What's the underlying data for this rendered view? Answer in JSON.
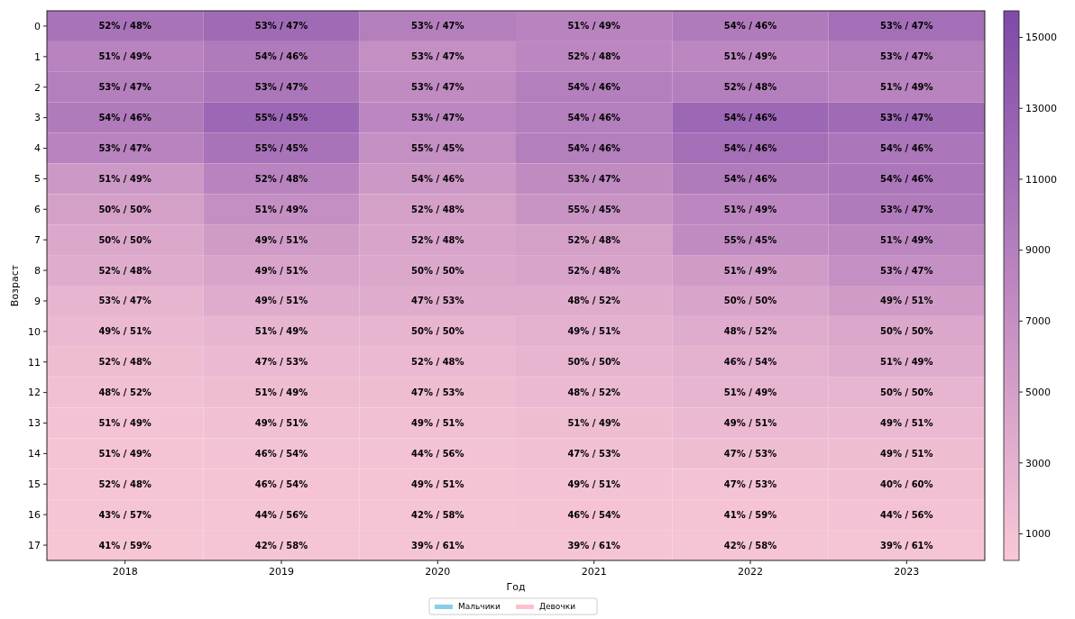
{
  "chart_data": {
    "type": "heatmap",
    "xlabel": "Год",
    "ylabel": "Возраст",
    "categories": [
      "2018",
      "2019",
      "2020",
      "2021",
      "2022",
      "2023"
    ],
    "y_categories": [
      "0",
      "1",
      "2",
      "3",
      "4",
      "5",
      "6",
      "7",
      "8",
      "9",
      "10",
      "11",
      "12",
      "13",
      "14",
      "15",
      "16",
      "17"
    ],
    "cells": [
      [
        10500,
        11500,
        9000,
        8500,
        9500,
        11000
      ],
      [
        8500,
        9500,
        7000,
        8000,
        8000,
        9000
      ],
      [
        9000,
        10000,
        7500,
        9000,
        9000,
        8500
      ],
      [
        9500,
        12000,
        8000,
        9000,
        12000,
        11500
      ],
      [
        8500,
        10500,
        7000,
        9000,
        11000,
        10000
      ],
      [
        6000,
        8500,
        6000,
        7500,
        9500,
        10000
      ],
      [
        5000,
        7000,
        5000,
        6500,
        8000,
        9500
      ],
      [
        4000,
        5500,
        4500,
        5000,
        7500,
        8000
      ],
      [
        3500,
        4500,
        4000,
        4500,
        5500,
        7000
      ],
      [
        2500,
        3500,
        3500,
        3500,
        4500,
        5500
      ],
      [
        2000,
        2500,
        2500,
        3000,
        3500,
        4000
      ],
      [
        1500,
        2000,
        2000,
        2500,
        3000,
        3500
      ],
      [
        1200,
        1500,
        1500,
        2000,
        2500,
        2500
      ],
      [
        1000,
        1200,
        1200,
        1500,
        2000,
        2000
      ],
      [
        800,
        1000,
        1000,
        1200,
        1500,
        1500
      ],
      [
        700,
        800,
        800,
        1000,
        1000,
        1200
      ],
      [
        600,
        700,
        700,
        800,
        800,
        900
      ],
      [
        500,
        600,
        600,
        600,
        700,
        700
      ]
    ],
    "cell_labels": [
      [
        "52% / 48%",
        "53% / 47%",
        "53% / 47%",
        "51% / 49%",
        "54% / 46%",
        "53% / 47%"
      ],
      [
        "51% / 49%",
        "54% / 46%",
        "53% / 47%",
        "52% / 48%",
        "51% / 49%",
        "53% / 47%"
      ],
      [
        "53% / 47%",
        "53% / 47%",
        "53% / 47%",
        "54% / 46%",
        "52% / 48%",
        "51% / 49%"
      ],
      [
        "54% / 46%",
        "55% / 45%",
        "53% / 47%",
        "54% / 46%",
        "54% / 46%",
        "53% / 47%"
      ],
      [
        "53% / 47%",
        "55% / 45%",
        "55% / 45%",
        "54% / 46%",
        "54% / 46%",
        "54% / 46%"
      ],
      [
        "51% / 49%",
        "52% / 48%",
        "54% / 46%",
        "53% / 47%",
        "54% / 46%",
        "54% / 46%"
      ],
      [
        "50% / 50%",
        "51% / 49%",
        "52% / 48%",
        "55% / 45%",
        "51% / 49%",
        "53% / 47%"
      ],
      [
        "50% / 50%",
        "49% / 51%",
        "52% / 48%",
        "52% / 48%",
        "55% / 45%",
        "51% / 49%"
      ],
      [
        "52% / 48%",
        "49% / 51%",
        "50% / 50%",
        "52% / 48%",
        "51% / 49%",
        "53% / 47%"
      ],
      [
        "53% / 47%",
        "49% / 51%",
        "47% / 53%",
        "48% / 52%",
        "50% / 50%",
        "49% / 51%"
      ],
      [
        "49% / 51%",
        "51% / 49%",
        "50% / 50%",
        "49% / 51%",
        "48% / 52%",
        "50% / 50%"
      ],
      [
        "52% / 48%",
        "47% / 53%",
        "52% / 48%",
        "50% / 50%",
        "46% / 54%",
        "51% / 49%"
      ],
      [
        "48% / 52%",
        "51% / 49%",
        "47% / 53%",
        "48% / 52%",
        "51% / 49%",
        "50% / 50%"
      ],
      [
        "51% / 49%",
        "49% / 51%",
        "49% / 51%",
        "51% / 49%",
        "49% / 51%",
        "49% / 51%"
      ],
      [
        "51% / 49%",
        "46% / 54%",
        "44% / 56%",
        "47% / 53%",
        "47% / 53%",
        "49% / 51%"
      ],
      [
        "52% / 48%",
        "46% / 54%",
        "49% / 51%",
        "49% / 51%",
        "47% / 53%",
        "40% / 60%"
      ],
      [
        "43% / 57%",
        "44% / 56%",
        "42% / 58%",
        "46% / 54%",
        "41% / 59%",
        "44% / 56%"
      ],
      [
        "41% / 59%",
        "42% / 58%",
        "39% / 61%",
        "39% / 61%",
        "42% / 58%",
        "39% / 61%"
      ]
    ],
    "annotations": [
      "Мальчики",
      "Девочки"
    ],
    "clim": [
      250,
      15750
    ],
    "cticks": [
      1000,
      3000,
      5000,
      7000,
      9000,
      11000,
      13000,
      15000
    ]
  }
}
